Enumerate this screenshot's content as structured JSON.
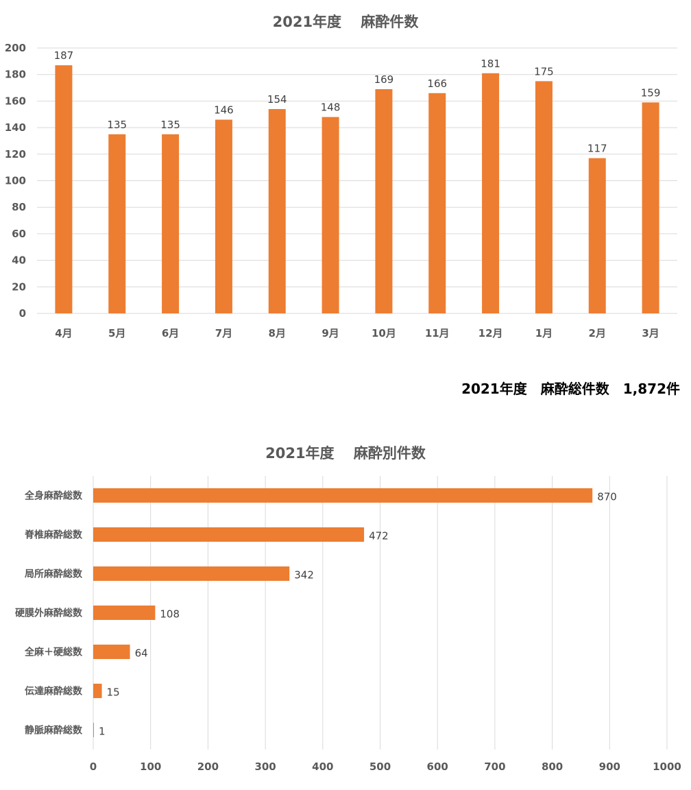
{
  "colors": {
    "bar": "#ED7D31",
    "grid": "#D9D9D9",
    "axis_text": "#595959"
  },
  "total_line": {
    "text": "2021年度　麻酔総件数　1,872件"
  },
  "chart_data": [
    {
      "type": "bar",
      "title": "2021年度　 麻酔件数",
      "categories": [
        "4月",
        "5月",
        "6月",
        "7月",
        "8月",
        "9月",
        "10月",
        "11月",
        "12月",
        "1月",
        "2月",
        "3月"
      ],
      "values": [
        187,
        135,
        135,
        146,
        154,
        148,
        169,
        166,
        181,
        175,
        117,
        159
      ],
      "xlabel": "",
      "ylabel": "",
      "ylim": [
        0,
        200
      ],
      "yticks": [
        0,
        20,
        40,
        60,
        80,
        100,
        120,
        140,
        160,
        180,
        200
      ],
      "grid": true,
      "data_labels": true,
      "orientation": "vertical"
    },
    {
      "type": "bar",
      "title": "2021年度　 麻酔別件数",
      "categories": [
        "全身麻酔総数",
        "脊椎麻酔総数",
        "局所麻酔総数",
        "硬膜外麻酔総数",
        "全麻＋硬総数",
        "伝達麻酔総数",
        "静脈麻酔総数"
      ],
      "values": [
        870,
        472,
        342,
        108,
        64,
        15,
        1
      ],
      "xlabel": "",
      "ylabel": "",
      "xlim": [
        0,
        1000
      ],
      "xticks": [
        0,
        100,
        200,
        300,
        400,
        500,
        600,
        700,
        800,
        900,
        1000
      ],
      "grid": true,
      "data_labels": true,
      "orientation": "horizontal"
    }
  ]
}
